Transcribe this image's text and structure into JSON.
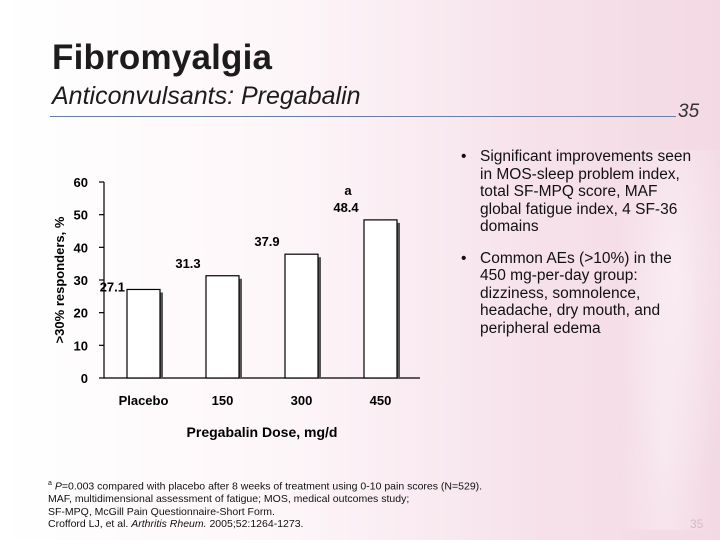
{
  "slide": {
    "title": "Fibromyalgia",
    "subtitle": "Anticonvulsants: Pregabalin",
    "number": "35"
  },
  "chart_data": {
    "type": "bar",
    "categories": [
      "Placebo",
      "150",
      "300",
      "450"
    ],
    "values": [
      27.1,
      31.3,
      37.9,
      48.4
    ],
    "value_labels": [
      "27.1",
      "31.3",
      "37.9",
      "48.4"
    ],
    "annotations": [
      "",
      "",
      "",
      "a"
    ],
    "xlabel": "Pregabalin Dose, mg/d",
    "ylabel": ">30% responders, %",
    "ylim": [
      0,
      60
    ],
    "yticks": [
      0,
      10,
      20,
      30,
      40,
      50,
      60
    ],
    "grid": false,
    "legend": "none",
    "colors": {
      "bar_fill": "#ffffff",
      "bar_border": "#000000",
      "bar_shadow": "#555555"
    }
  },
  "bullets": [
    "Significant improvements seen in MOS-sleep problem index, total SF-MPQ score, MAF global fatigue index, 4 SF-36 domains",
    "Common AEs (>10%) in the 450 mg-per-day group: dizziness, somnolence, headache, dry mouth, and peripheral edema"
  ],
  "bullet_symbol": "•",
  "footnotes": {
    "sup": "a",
    "p_value_italic": "P",
    "line1_rest": "=0.003 compared with placebo after 8 weeks of treatment using 0-10 pain scores (N=529).",
    "line2": "MAF, multidimensional assessment of fatigue; MOS, medical outcomes study;",
    "line3": "SF-MPQ, McGill Pain Questionnaire-Short Form.",
    "citation_authors": "Crofford LJ, et al. ",
    "citation_journal": "Arthritis Rheum.",
    "citation_rest": " 2005;52:1264-1273."
  }
}
